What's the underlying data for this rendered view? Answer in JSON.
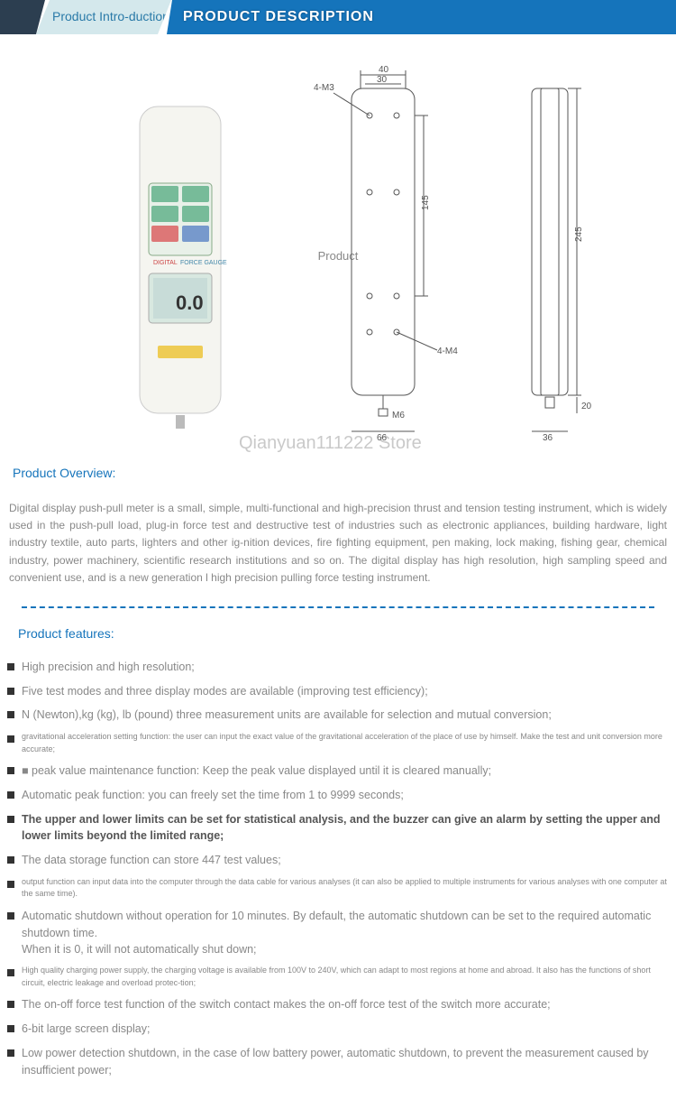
{
  "header": {
    "intro_title": "Product Intro-duction",
    "description_label": "PRODUCT DESCRIPTION"
  },
  "product_placeholder": "Product",
  "watermark": "Qianyuan111222 Store",
  "overview": {
    "title": "Product Overview:",
    "text": "Digital display push-pull meter is a small, simple, multi-functional and high-precision thrust and tension testing instrument, which is widely used in the push-pull load, plug-in force test and destructive test of industries such as electronic appliances, building hardware, light industry textile, auto parts, lighters and other ig-nition devices, fire fighting equipment, pen making, lock making, fishing gear, chemical industry, power machinery, scientific research institutions and so on. The digital display has high resolution, high sampling speed and convenient use, and is a new generation l high precision pulling force testing instrument."
  },
  "features": {
    "title": "Product features:",
    "items": [
      {
        "text": "High precision and high resolution;",
        "style": "normal"
      },
      {
        "text": "Five test modes and three display modes are available (improving test efficiency);",
        "style": "normal"
      },
      {
        "text": "N (Newton),kg (kg), lb (pound) three measurement units are available for selection and mutual conversion;",
        "style": "normal"
      },
      {
        "text": "gravitational acceleration setting function: the user can input the exact value of the gravitational acceleration of the place of use by himself. Make the test and unit conversion more accurate;",
        "style": "small"
      },
      {
        "text": "■ peak value maintenance function: Keep the peak value displayed until it is cleared manually;",
        "style": "normal"
      },
      {
        "text": "Automatic peak function: you can freely set the time from 1 to 9999 seconds;",
        "style": "normal"
      },
      {
        "text": "The upper and lower limits can be set for statistical analysis, and the buzzer can give an alarm by setting the upper and lower limits beyond the limited range;",
        "style": "bold"
      },
      {
        "text": "The data storage function can store 447 test values;",
        "style": "normal"
      },
      {
        "text": "output function can input data into the computer through the data cable for various analyses (it can also be applied to multiple instruments for various analyses with one computer at the same time).",
        "style": "small"
      },
      {
        "text": "Automatic shutdown without operation for 10 minutes. By default, the automatic shutdown can be set to the required automatic shutdown time.",
        "style": "normal"
      },
      {
        "text": "When it is 0, it will not automatically shut down;",
        "style": "indent"
      },
      {
        "text": "High quality charging power supply, the charging voltage is available from 100V to 240V, which can adapt to most regions at home and abroad. It also has the functions of short circuit, electric leakage and overload protec-tion;",
        "style": "small"
      },
      {
        "text": "The on-off force test function of the switch contact makes the on-off force test of the switch more accurate;",
        "style": "normal"
      },
      {
        "text": "6-bit large screen display;",
        "style": "normal"
      },
      {
        "text": "Low power detection shutdown, in the case of low battery power, automatic shutdown, to prevent the measurement caused by insufficient power;",
        "style": "normal"
      }
    ]
  },
  "colors": {
    "primary": "#1574bb",
    "dark_ribbon": "#2c3e50",
    "light_ribbon": "#d4e8ec",
    "text_gray": "#888",
    "text_bold": "#555"
  },
  "diagram": {
    "dim_top": "40",
    "dim_top_inner": "30",
    "dim_height_inner": "145",
    "dim_height_outer": "245",
    "dim_bottom_width": "66",
    "dim_m6": "M6",
    "dim_side_width": "36",
    "dim_side_bottom": "20",
    "label_m3": "4-M3",
    "label_m4": "4-M4"
  }
}
